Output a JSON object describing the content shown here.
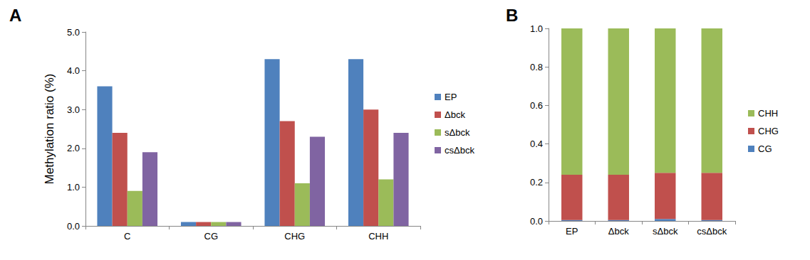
{
  "chart_data": [
    {
      "type": "bar",
      "title": "A",
      "y_label": "Methylation ratio (%)",
      "categories": [
        "C",
        "CG",
        "CHG",
        "CHH"
      ],
      "series": [
        {
          "name": "EP",
          "color": "#4f81bd",
          "values": [
            3.6,
            0.1,
            4.3,
            4.3
          ]
        },
        {
          "name": "Δbck",
          "color": "#c0504d",
          "values": [
            2.4,
            0.1,
            2.7,
            3.0
          ]
        },
        {
          "name": "sΔbck",
          "color": "#9bbb59",
          "values": [
            0.9,
            0.1,
            1.1,
            1.2
          ]
        },
        {
          "name": "csΔbck",
          "color": "#8064a2",
          "values": [
            1.9,
            0.1,
            2.3,
            2.4
          ]
        }
      ],
      "ylim": [
        0,
        5
      ],
      "yticks": [
        {
          "value": 0,
          "label": "0.0"
        },
        {
          "value": 1,
          "label": "1.0"
        },
        {
          "value": 2,
          "label": "2.0"
        },
        {
          "value": 3,
          "label": "3.0"
        },
        {
          "value": 4,
          "label": "4.0"
        },
        {
          "value": 5,
          "label": "5.0"
        }
      ],
      "grid": false,
      "legend": "right",
      "stacked": false
    },
    {
      "type": "bar",
      "title": "B",
      "categories": [
        "EP",
        "Δbck",
        "sΔbck",
        "csΔbck"
      ],
      "series": [
        {
          "name": "CG",
          "color": "#4f81bd",
          "values": [
            0.005,
            0.005,
            0.01,
            0.005
          ]
        },
        {
          "name": "CHG",
          "color": "#c0504d",
          "values": [
            0.235,
            0.235,
            0.24,
            0.245
          ]
        },
        {
          "name": "CHH",
          "color": "#9bbb59",
          "values": [
            0.76,
            0.76,
            0.75,
            0.75
          ]
        }
      ],
      "ylim": [
        0,
        1
      ],
      "yticks": [
        {
          "value": 0,
          "label": "0.0"
        },
        {
          "value": 0.2,
          "label": "0.2"
        },
        {
          "value": 0.4,
          "label": "0.4"
        },
        {
          "value": 0.6,
          "label": "0.6"
        },
        {
          "value": 0.8,
          "label": "0.8"
        },
        {
          "value": 1,
          "label": "1.0"
        }
      ],
      "grid": false,
      "legend": "right",
      "stacked": true
    }
  ]
}
